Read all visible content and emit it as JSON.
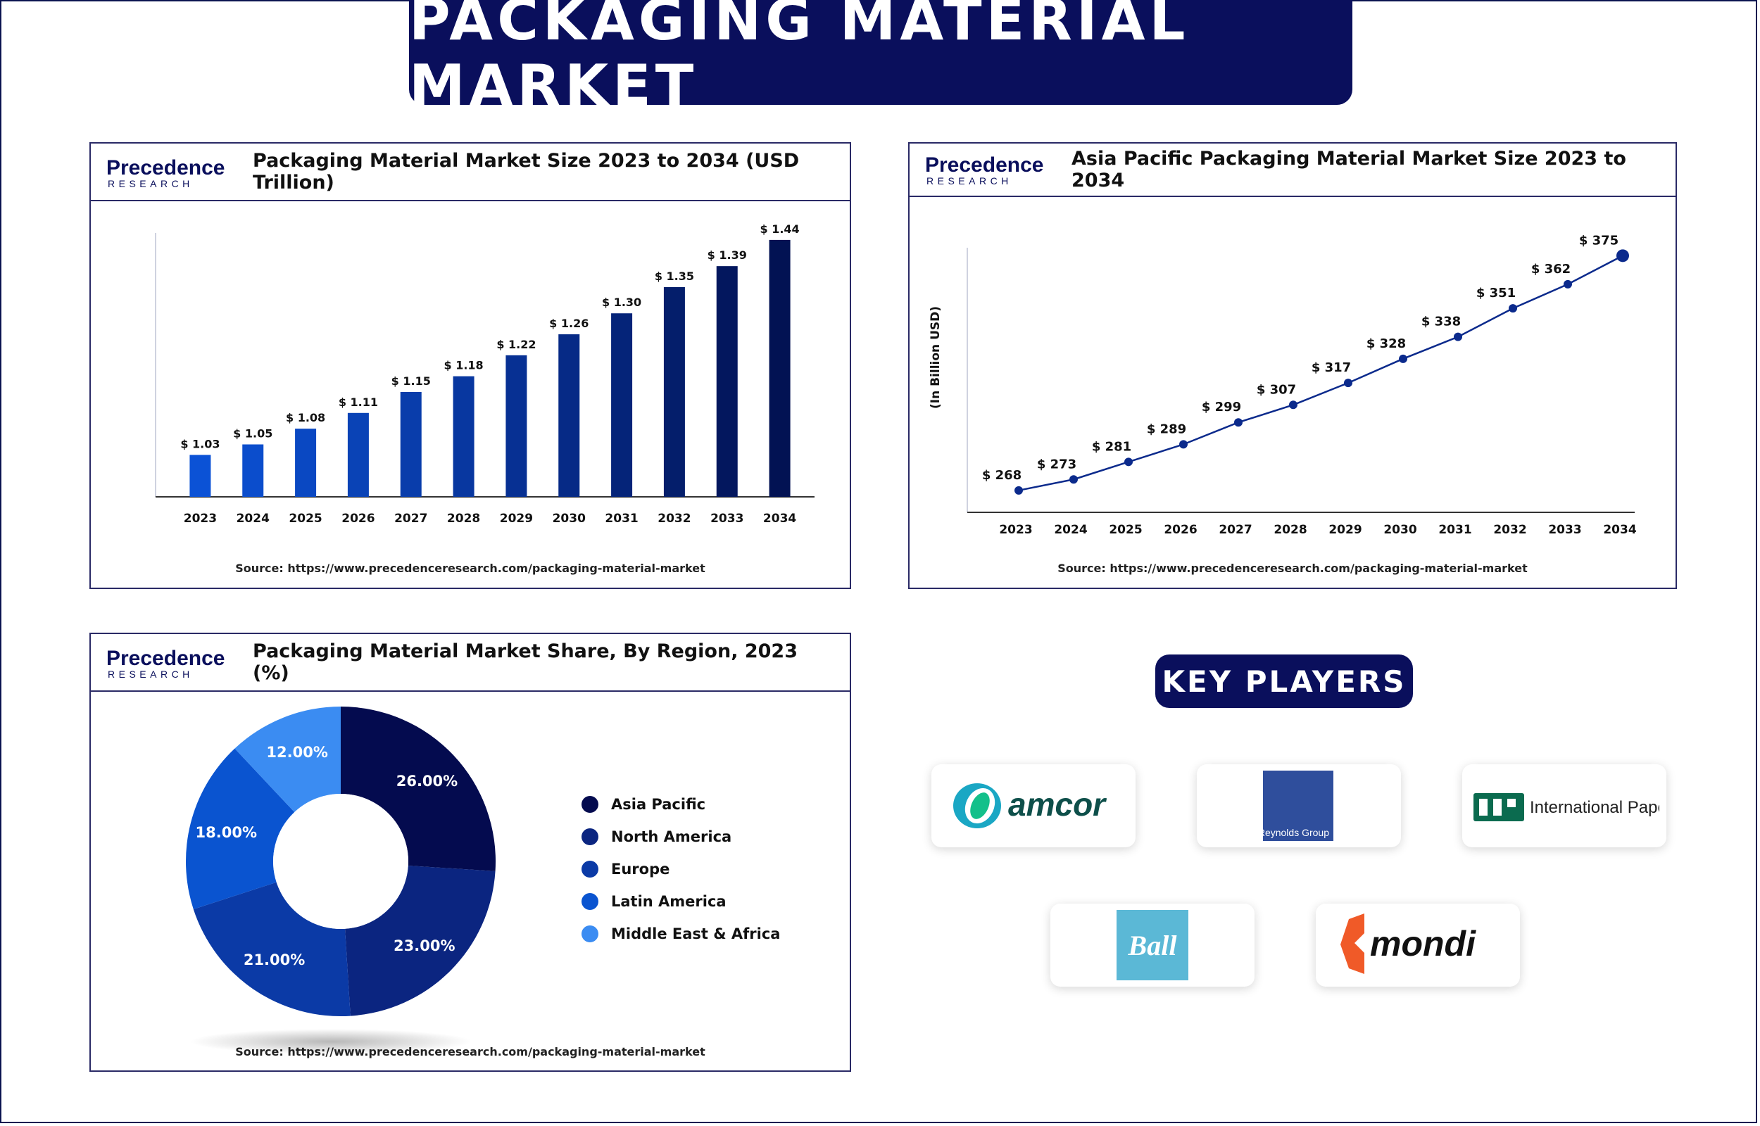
{
  "banner_title": "PACKAGING MATERIAL MARKET",
  "logo": {
    "name": "Precedence",
    "sub": "RESEARCH"
  },
  "source_text": "Source: https://www.precedenceresearch.com/packaging-material-market",
  "key_players_title": "KEY PLAYERS",
  "key_players": [
    {
      "name": "amcor",
      "brand_color": "#0e4f4a"
    },
    {
      "name": "Reynolds Group",
      "brand_color": "#2f4e9c"
    },
    {
      "name": "International Paper",
      "brand_color": "#0b6b4f"
    },
    {
      "name": "Ball",
      "brand_color": "#5bb8d6"
    },
    {
      "name": "mondi",
      "brand_color": "#f05a28"
    }
  ],
  "chart_data": [
    {
      "type": "bar",
      "title": "Packaging Material Market Size 2023 to 2034 (USD Trillion)",
      "categories": [
        "2023",
        "2024",
        "2025",
        "2026",
        "2027",
        "2028",
        "2029",
        "2030",
        "2031",
        "2032",
        "2033",
        "2034"
      ],
      "values": [
        1.03,
        1.05,
        1.08,
        1.11,
        1.15,
        1.18,
        1.22,
        1.26,
        1.3,
        1.35,
        1.39,
        1.44
      ],
      "labels": [
        "$ 1.03",
        "$ 1.05",
        "$ 1.08",
        "$ 1.11",
        "$ 1.15",
        "$ 1.18",
        "$ 1.22",
        "$ 1.26",
        "$ 1.30",
        "$ 1.35",
        "$ 1.39",
        "$ 1.44"
      ],
      "colors": [
        "#0b52d6",
        "#0b4dcc",
        "#0a48c2",
        "#0a43b6",
        "#093dab",
        "#0837a0",
        "#073093",
        "#062a86",
        "#052479",
        "#041e6b",
        "#03175e",
        "#021253"
      ],
      "grid": false
    },
    {
      "type": "line",
      "title": "Asia Pacific Packaging Material Market Size 2023 to 2034",
      "ylabel": "(In Billion USD)",
      "x": [
        "2023",
        "2024",
        "2025",
        "2026",
        "2027",
        "2028",
        "2029",
        "2030",
        "2031",
        "2032",
        "2033",
        "2034"
      ],
      "values": [
        268,
        273,
        281,
        289,
        299,
        307,
        317,
        328,
        338,
        351,
        362,
        375
      ],
      "labels": [
        "$ 268",
        "$ 273",
        "$ 281",
        "$ 289",
        "$ 299",
        "$ 307",
        "$ 317",
        "$ 328",
        "$ 338",
        "$ 351",
        "$ 362",
        "$ 375"
      ],
      "color": "#0b2a8c",
      "grid": false
    },
    {
      "type": "pie",
      "title": "Packaging Material Market Share, By Region, 2023 (%)",
      "categories": [
        "Asia Pacific",
        "North America",
        "Europe",
        "Latin America",
        "Middle East & Africa"
      ],
      "values": [
        26,
        23,
        21,
        18,
        12
      ],
      "labels": [
        "26.00%",
        "23.00%",
        "21.00%",
        "18.00%",
        "12.00%"
      ],
      "colors": [
        "#040b4f",
        "#0b2580",
        "#0b3aa6",
        "#0a54d0",
        "#3b8cf2"
      ],
      "legend_placement": "right",
      "donut": true
    }
  ]
}
